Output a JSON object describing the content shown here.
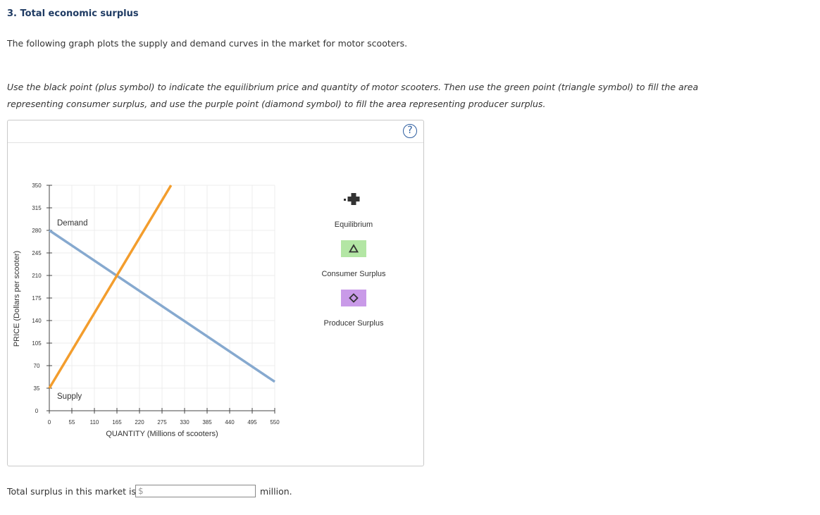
{
  "heading": "3. Total economic surplus",
  "intro": "The following graph plots the supply and demand curves in the market for motor scooters.",
  "instructions": "Use the black point (plus symbol) to indicate the equilibrium price and quantity of motor scooters. Then use the green point (triangle symbol) to fill the area representing consumer surplus, and use the purple point (diamond symbol) to fill the area representing producer surplus.",
  "help_label": "?",
  "palette": [
    {
      "label": "Equilibrium",
      "icon": "plus-icon",
      "color": "#333333"
    },
    {
      "label": "Consumer Surplus",
      "icon": "triangle-icon",
      "color": "#b3e6a4"
    },
    {
      "label": "Producer Surplus",
      "icon": "diamond-icon",
      "color": "#c99ae8"
    }
  ],
  "answer": {
    "label": "Total surplus in this market is",
    "currency": "$",
    "value": "",
    "unit": "million."
  },
  "chart_data": {
    "type": "line",
    "xlabel": "QUANTITY (Millions of scooters)",
    "ylabel": "PRICE (Dollars per scooter)",
    "xlim": [
      0,
      550
    ],
    "ylim": [
      0,
      350
    ],
    "xticks": [
      0,
      55,
      110,
      165,
      220,
      275,
      330,
      385,
      440,
      495,
      550
    ],
    "yticks": [
      0,
      35,
      70,
      105,
      140,
      175,
      210,
      245,
      280,
      315,
      350
    ],
    "grid": true,
    "series": [
      {
        "name": "Demand",
        "color": "#86a9cf",
        "x": [
          0,
          550
        ],
        "y": [
          280,
          45
        ]
      },
      {
        "name": "Supply",
        "color": "#f39d2d",
        "x": [
          0,
          297
        ],
        "y": [
          35,
          350
        ]
      }
    ]
  }
}
